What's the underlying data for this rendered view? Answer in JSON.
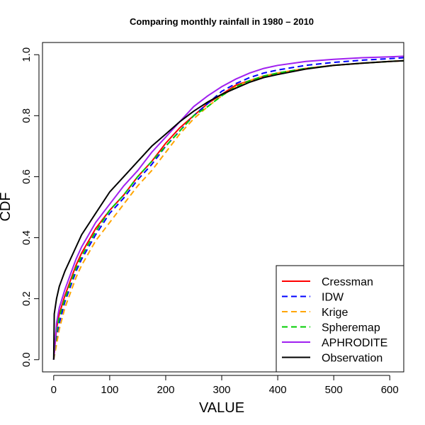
{
  "chart_data": {
    "type": "line",
    "title": "Comparing monthly rainfall in 1980 – 2010",
    "xlabel": "VALUE",
    "ylabel": "CDF",
    "xlim": [
      -20,
      625
    ],
    "ylim": [
      -0.04,
      1.04
    ],
    "x_ticks": [
      0,
      100,
      200,
      300,
      400,
      500,
      600
    ],
    "y_ticks": [
      0.0,
      0.2,
      0.4,
      0.6,
      0.8,
      1.0
    ],
    "x_tick_labels": [
      "0",
      "100",
      "200",
      "300",
      "400",
      "500",
      "600"
    ],
    "y_tick_labels": [
      "0.0",
      "0.2",
      "0.4",
      "0.6",
      "0.8",
      "1.0"
    ],
    "grid": false,
    "legend_position": "bottom-right",
    "series": [
      {
        "name": "Cressman",
        "color": "#ff0000",
        "dash": "solid",
        "points": [
          [
            0,
            0.0
          ],
          [
            5,
            0.1
          ],
          [
            10,
            0.15
          ],
          [
            20,
            0.21
          ],
          [
            30,
            0.26
          ],
          [
            40,
            0.31
          ],
          [
            50,
            0.35
          ],
          [
            75,
            0.43
          ],
          [
            100,
            0.49
          ],
          [
            125,
            0.54
          ],
          [
            150,
            0.6
          ],
          [
            175,
            0.65
          ],
          [
            200,
            0.71
          ],
          [
            225,
            0.76
          ],
          [
            250,
            0.8
          ],
          [
            275,
            0.84
          ],
          [
            300,
            0.87
          ],
          [
            325,
            0.9
          ],
          [
            350,
            0.915
          ],
          [
            375,
            0.93
          ],
          [
            400,
            0.94
          ],
          [
            450,
            0.955
          ],
          [
            500,
            0.965
          ],
          [
            550,
            0.972
          ],
          [
            600,
            0.978
          ],
          [
            625,
            0.98
          ]
        ]
      },
      {
        "name": "IDW",
        "color": "#0000ff",
        "dash": "dashed",
        "points": [
          [
            0,
            0.0
          ],
          [
            5,
            0.07
          ],
          [
            10,
            0.12
          ],
          [
            20,
            0.19
          ],
          [
            30,
            0.24
          ],
          [
            40,
            0.29
          ],
          [
            50,
            0.33
          ],
          [
            75,
            0.41
          ],
          [
            100,
            0.48
          ],
          [
            125,
            0.53
          ],
          [
            150,
            0.59
          ],
          [
            175,
            0.64
          ],
          [
            200,
            0.7
          ],
          [
            225,
            0.75
          ],
          [
            250,
            0.8
          ],
          [
            275,
            0.84
          ],
          [
            300,
            0.88
          ],
          [
            325,
            0.905
          ],
          [
            350,
            0.925
          ],
          [
            375,
            0.94
          ],
          [
            400,
            0.95
          ],
          [
            450,
            0.965
          ],
          [
            500,
            0.975
          ],
          [
            550,
            0.982
          ],
          [
            600,
            0.987
          ],
          [
            625,
            0.99
          ]
        ]
      },
      {
        "name": "Krige",
        "color": "#ffa500",
        "dash": "dashed",
        "points": [
          [
            0,
            0.0
          ],
          [
            5,
            0.05
          ],
          [
            10,
            0.1
          ],
          [
            20,
            0.17
          ],
          [
            30,
            0.22
          ],
          [
            40,
            0.27
          ],
          [
            50,
            0.31
          ],
          [
            75,
            0.39
          ],
          [
            100,
            0.45
          ],
          [
            125,
            0.51
          ],
          [
            150,
            0.57
          ],
          [
            175,
            0.62
          ],
          [
            200,
            0.68
          ],
          [
            225,
            0.74
          ],
          [
            250,
            0.79
          ],
          [
            275,
            0.83
          ],
          [
            300,
            0.865
          ],
          [
            325,
            0.895
          ],
          [
            350,
            0.915
          ],
          [
            375,
            0.93
          ],
          [
            400,
            0.94
          ],
          [
            450,
            0.955
          ],
          [
            500,
            0.965
          ],
          [
            550,
            0.972
          ],
          [
            600,
            0.978
          ],
          [
            625,
            0.98
          ]
        ]
      },
      {
        "name": "Spheremap",
        "color": "#00cd00",
        "dash": "dashed",
        "points": [
          [
            0,
            0.0
          ],
          [
            5,
            0.09
          ],
          [
            10,
            0.14
          ],
          [
            20,
            0.2
          ],
          [
            30,
            0.25
          ],
          [
            40,
            0.3
          ],
          [
            50,
            0.34
          ],
          [
            75,
            0.42
          ],
          [
            100,
            0.49
          ],
          [
            125,
            0.54
          ],
          [
            150,
            0.6
          ],
          [
            175,
            0.65
          ],
          [
            200,
            0.7
          ],
          [
            225,
            0.75
          ],
          [
            250,
            0.8
          ],
          [
            275,
            0.83
          ],
          [
            300,
            0.865
          ],
          [
            325,
            0.895
          ],
          [
            350,
            0.915
          ],
          [
            375,
            0.93
          ],
          [
            400,
            0.94
          ],
          [
            450,
            0.955
          ],
          [
            500,
            0.965
          ],
          [
            550,
            0.972
          ],
          [
            600,
            0.978
          ],
          [
            625,
            0.98
          ]
        ]
      },
      {
        "name": "APHRODITE",
        "color": "#a020f0",
        "dash": "solid",
        "points": [
          [
            0,
            0.0
          ],
          [
            5,
            0.12
          ],
          [
            10,
            0.17
          ],
          [
            20,
            0.23
          ],
          [
            30,
            0.28
          ],
          [
            40,
            0.33
          ],
          [
            50,
            0.37
          ],
          [
            75,
            0.45
          ],
          [
            100,
            0.51
          ],
          [
            125,
            0.57
          ],
          [
            150,
            0.62
          ],
          [
            175,
            0.68
          ],
          [
            200,
            0.73
          ],
          [
            225,
            0.78
          ],
          [
            250,
            0.83
          ],
          [
            275,
            0.865
          ],
          [
            300,
            0.895
          ],
          [
            325,
            0.92
          ],
          [
            350,
            0.94
          ],
          [
            375,
            0.955
          ],
          [
            400,
            0.965
          ],
          [
            450,
            0.978
          ],
          [
            500,
            0.985
          ],
          [
            550,
            0.99
          ],
          [
            600,
            0.993
          ],
          [
            625,
            0.995
          ]
        ]
      },
      {
        "name": "Observation",
        "color": "#000000",
        "dash": "solid",
        "points": [
          [
            0,
            0.0
          ],
          [
            1,
            0.15
          ],
          [
            5,
            0.2
          ],
          [
            10,
            0.24
          ],
          [
            20,
            0.29
          ],
          [
            30,
            0.33
          ],
          [
            40,
            0.37
          ],
          [
            50,
            0.41
          ],
          [
            75,
            0.48
          ],
          [
            100,
            0.55
          ],
          [
            125,
            0.6
          ],
          [
            150,
            0.65
          ],
          [
            175,
            0.7
          ],
          [
            200,
            0.74
          ],
          [
            225,
            0.78
          ],
          [
            250,
            0.815
          ],
          [
            275,
            0.845
          ],
          [
            300,
            0.87
          ],
          [
            325,
            0.89
          ],
          [
            350,
            0.91
          ],
          [
            375,
            0.925
          ],
          [
            400,
            0.935
          ],
          [
            450,
            0.953
          ],
          [
            500,
            0.965
          ],
          [
            550,
            0.972
          ],
          [
            600,
            0.978
          ],
          [
            625,
            0.98
          ]
        ]
      }
    ]
  }
}
